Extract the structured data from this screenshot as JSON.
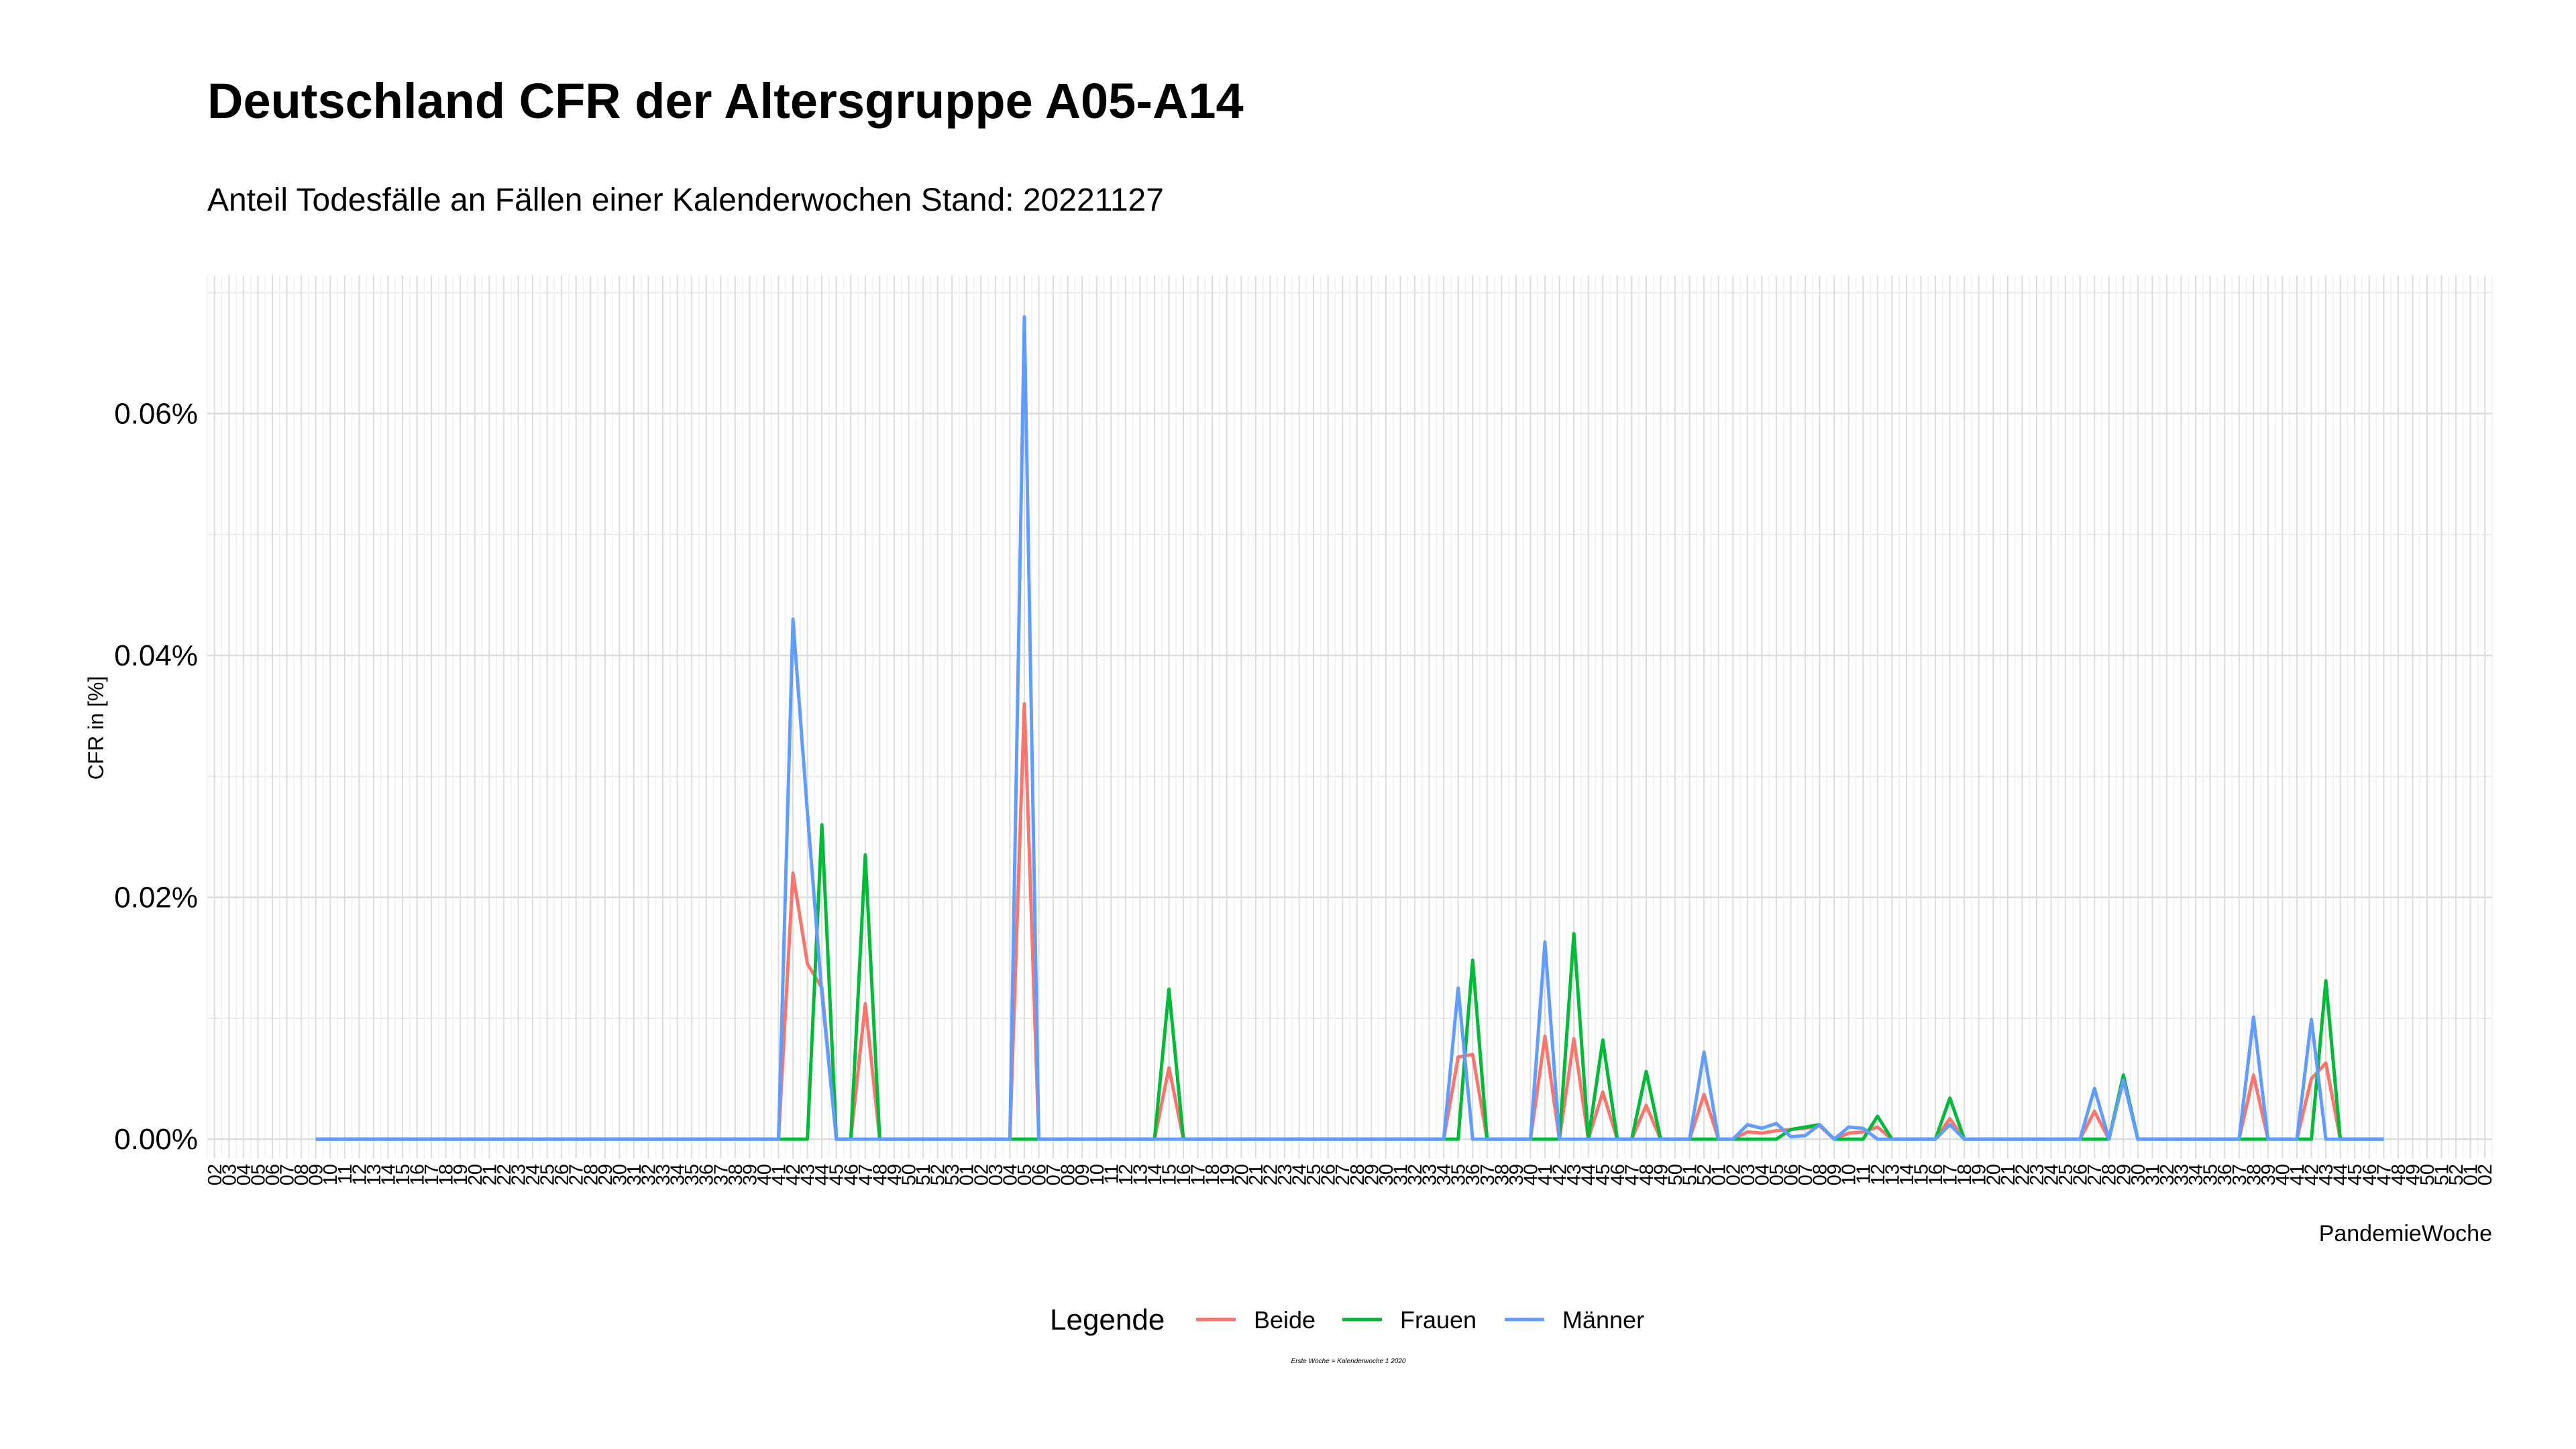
{
  "chart_data": {
    "type": "line",
    "title": "Deutschland CFR der Altersgruppe A05-A14",
    "subtitle": "Anteil Todesfälle an Fällen einer Kalenderwochen Stand: 20221127",
    "x_label": "PandemieWoche",
    "y_label": "CFR in [%]",
    "legend_title": "Legende",
    "caption": "Erste Woche = Kalenderwoche 1 2020",
    "grid": true,
    "categories": [
      "02",
      "03",
      "04",
      "05",
      "06",
      "07",
      "08",
      "09",
      "10",
      "11",
      "12",
      "13",
      "14",
      "15",
      "16",
      "17",
      "18",
      "19",
      "20",
      "21",
      "22",
      "23",
      "24",
      "25",
      "26",
      "27",
      "28",
      "29",
      "30",
      "31",
      "32",
      "33",
      "34",
      "35",
      "36",
      "37",
      "38",
      "39",
      "40",
      "41",
      "42",
      "43",
      "44",
      "45",
      "46",
      "47",
      "48",
      "49",
      "50",
      "51",
      "52",
      "53",
      "01",
      "02",
      "03",
      "04",
      "05",
      "06",
      "07",
      "08",
      "09",
      "10",
      "11",
      "12",
      "13",
      "14",
      "15",
      "16",
      "17",
      "18",
      "19",
      "20",
      "21",
      "22",
      "23",
      "24",
      "25",
      "26",
      "27",
      "28",
      "29",
      "30",
      "31",
      "32",
      "33",
      "34",
      "35",
      "36",
      "37",
      "38",
      "39",
      "40",
      "41",
      "42",
      "43",
      "44",
      "45",
      "46",
      "47",
      "48",
      "49",
      "50",
      "51",
      "52",
      "01",
      "02",
      "03",
      "04",
      "05",
      "06",
      "07",
      "08",
      "09",
      "10",
      "11",
      "12",
      "13",
      "14",
      "15",
      "16",
      "17",
      "18",
      "19",
      "20",
      "21",
      "22",
      "23",
      "24",
      "25",
      "26",
      "27",
      "28",
      "29",
      "30",
      "31",
      "32",
      "33",
      "34",
      "35",
      "36",
      "37",
      "38",
      "39",
      "40",
      "41",
      "42",
      "43",
      "44",
      "45",
      "46",
      "47",
      "48",
      "49",
      "50",
      "51",
      "52",
      "01",
      "02"
    ],
    "ylim": [
      -0.0016,
      0.0714
    ],
    "yticks": [
      {
        "value": 0,
        "label": "0.00%"
      },
      {
        "value": 0.02,
        "label": "0.02%"
      },
      {
        "value": 0.04,
        "label": "0.04%"
      },
      {
        "value": 0.06,
        "label": "0.06%"
      }
    ],
    "yminor": [
      0.01,
      0.03,
      0.05,
      0.07
    ],
    "series": [
      {
        "name": "Beide",
        "color": "#F8766D",
        "values": [
          null,
          null,
          null,
          null,
          null,
          null,
          null,
          0,
          0,
          0,
          0,
          0,
          0,
          0,
          0,
          0,
          0,
          0,
          0,
          0,
          0,
          0,
          0,
          0,
          0,
          0,
          0,
          0,
          0,
          0,
          0,
          0,
          0,
          0,
          0,
          0,
          0,
          0,
          0,
          0,
          0.022,
          0.0145,
          0.0125,
          0,
          0,
          0.0112,
          0,
          0,
          0,
          0,
          0,
          0,
          0,
          0,
          0,
          0,
          0.036,
          0,
          0,
          0,
          0,
          0,
          0,
          0,
          0,
          0,
          0.0059,
          0,
          0,
          0,
          0,
          0,
          0,
          0,
          0,
          0,
          0,
          0,
          0,
          0,
          0,
          0,
          0,
          0,
          0,
          0,
          0.0068,
          0.007,
          0,
          0,
          0,
          0,
          0.0085,
          0,
          0.0083,
          0,
          0.0039,
          0,
          0,
          0.0028,
          0,
          0,
          0,
          0.0037,
          0,
          0,
          0.0006,
          0.0005,
          0.0007,
          0.0008,
          0.0009,
          0.0011,
          0,
          0.0005,
          0.0006,
          0.001,
          0,
          0,
          0,
          0,
          0.0017,
          0,
          0,
          0,
          0,
          0,
          0,
          0,
          0,
          0,
          0.0023,
          0,
          0.0051,
          0,
          0,
          0,
          0,
          0,
          0,
          0,
          0,
          0.0053,
          0,
          0,
          0,
          0.005,
          0.0063,
          0,
          0,
          0,
          0,
          null,
          null,
          null,
          null,
          null,
          null,
          null
        ]
      },
      {
        "name": "Frauen",
        "color": "#00BA38",
        "values": [
          null,
          null,
          null,
          null,
          null,
          null,
          null,
          0,
          0,
          0,
          0,
          0,
          0,
          0,
          0,
          0,
          0,
          0,
          0,
          0,
          0,
          0,
          0,
          0,
          0,
          0,
          0,
          0,
          0,
          0,
          0,
          0,
          0,
          0,
          0,
          0,
          0,
          0,
          0,
          0,
          0,
          0,
          0.026,
          0,
          0,
          0.0235,
          0,
          0,
          0,
          0,
          0,
          0,
          0,
          0,
          0,
          0,
          0,
          0,
          0,
          0,
          0,
          0,
          0,
          0,
          0,
          0,
          0.0124,
          0,
          0,
          0,
          0,
          0,
          0,
          0,
          0,
          0,
          0,
          0,
          0,
          0,
          0,
          0,
          0,
          0,
          0,
          0,
          0,
          0.0148,
          0,
          0,
          0,
          0,
          0,
          0,
          0.017,
          0,
          0.0082,
          0,
          0,
          0.0056,
          0,
          0,
          0,
          0,
          0,
          0,
          0,
          0,
          0,
          0.0008,
          0.001,
          0.0012,
          0,
          0,
          0,
          0.0019,
          0,
          0,
          0,
          0,
          0.0034,
          0,
          0,
          0,
          0,
          0,
          0,
          0,
          0,
          0,
          0,
          0,
          0.0053,
          0,
          0,
          0,
          0,
          0,
          0,
          0,
          0,
          0,
          0,
          0,
          0,
          0,
          0.0131,
          0,
          0,
          0,
          0,
          null,
          null,
          null,
          null,
          null,
          null,
          null
        ]
      },
      {
        "name": "Männer",
        "color": "#619CFF",
        "values": [
          null,
          null,
          null,
          null,
          null,
          null,
          null,
          0,
          0,
          0,
          0,
          0,
          0,
          0,
          0,
          0,
          0,
          0,
          0,
          0,
          0,
          0,
          0,
          0,
          0,
          0,
          0,
          0,
          0,
          0,
          0,
          0,
          0,
          0,
          0,
          0,
          0,
          0,
          0,
          0,
          0.043,
          0.027,
          0.012,
          0,
          0,
          0,
          0,
          0,
          0,
          0,
          0,
          0,
          0,
          0,
          0,
          0,
          0.068,
          0,
          0,
          0,
          0,
          0,
          0,
          0,
          0,
          0,
          0,
          0,
          0,
          0,
          0,
          0,
          0,
          0,
          0,
          0,
          0,
          0,
          0,
          0,
          0,
          0,
          0,
          0,
          0,
          0,
          0.0125,
          0,
          0,
          0,
          0,
          0,
          0.0163,
          0,
          0,
          0,
          0,
          0,
          0,
          0,
          0,
          0,
          0,
          0.0072,
          0,
          0,
          0.0012,
          0.0009,
          0.0013,
          0.0002,
          0.0003,
          0.0012,
          0,
          0.001,
          0.0009,
          0,
          0,
          0,
          0,
          0,
          0.0012,
          0,
          0,
          0,
          0,
          0,
          0,
          0,
          0,
          0,
          0.0042,
          0,
          0.0049,
          0,
          0,
          0,
          0,
          0,
          0,
          0,
          0,
          0.0101,
          0,
          0,
          0,
          0.0099,
          0,
          0,
          0,
          0,
          0,
          null,
          null,
          null,
          null,
          null,
          null,
          null
        ]
      }
    ]
  }
}
